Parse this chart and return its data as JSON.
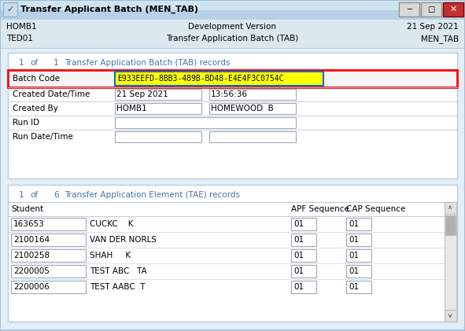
{
  "title_bar_text": "Transfer Applicant Batch (MEN_TAB)",
  "title_bar_bg": "#b8d0e8",
  "title_bar_gradient_top": "#c8dce8",
  "line1_left": "HOMB1",
  "line1_center": "Development Version",
  "line1_right": "21 Sep 2021",
  "line2_left": "TED01",
  "line2_center": "Transfer Application Batch (TAB)",
  "line2_right": "MEN_TAB",
  "header_bg": "#dce8f0",
  "body_bg": "#e4eef8",
  "panel_bg": "#ffffff",
  "panel_border": "#b8ccdc",
  "outer_border": "#a0bcd0",
  "batch_code_value": "E933EEFD-8BB3-489B-BD48-E4E4F3C0754C",
  "batch_code_bg": "#ffff00",
  "batch_code_border_inner": "#0070c0",
  "batch_row_border": "#ff0000",
  "field_rows": [
    {
      "label": "Created Date/Time",
      "val1": "21 Sep 2021",
      "val2": "13:56:36",
      "wide": false
    },
    {
      "label": "Created By",
      "val1": "HOMB1",
      "val2": "HOMEWOOD  B",
      "wide": false
    },
    {
      "label": "Run ID",
      "val1": "",
      "val2": null,
      "wide": true
    },
    {
      "label": "Run Date/Time",
      "val1": "",
      "val2": "",
      "wide": false
    }
  ],
  "table_rows": [
    {
      "student_id": "163653",
      "name": "CUCKC    K",
      "apf": "01",
      "cap": "01"
    },
    {
      "student_id": "2100164",
      "name": "VAN DER NORLS",
      "apf": "01",
      "cap": "01"
    },
    {
      "student_id": "2100258",
      "name": "SHAH     K",
      "apf": "01",
      "cap": "01"
    },
    {
      "student_id": "2200005",
      "name": "TEST ABC   TA",
      "apf": "01",
      "cap": "01"
    },
    {
      "student_id": "2200006",
      "name": "TEST AABC  T",
      "apf": "01",
      "cap": "01"
    }
  ],
  "text_color": "#000000",
  "blue_text_color": "#4472aa",
  "field_box_border": "#a0a8b0",
  "window_bg": "#b8cce0",
  "scrollbar_bg": "#e8e8e8",
  "scrollbar_border": "#c0c0c0",
  "scrollbar_thumb": "#b0b0b0",
  "font_size": 7.5,
  "title_font_size": 8.0
}
